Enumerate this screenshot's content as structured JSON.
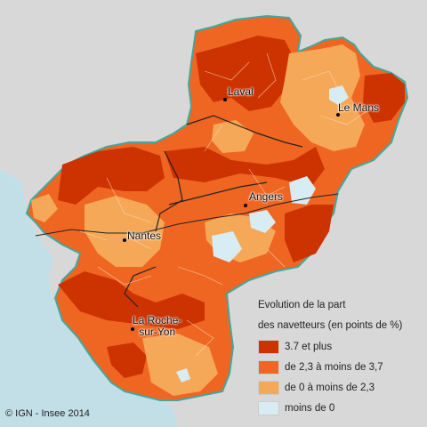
{
  "cities": [
    {
      "name": "Laval"
    },
    {
      "name": "Le Mans"
    },
    {
      "name": "Angers"
    },
    {
      "name": "Nantes"
    },
    {
      "name": "La Roche-\nsur-Yon"
    }
  ],
  "legend": {
    "title_line1": "Evolution de la part",
    "title_line2": "des navetteurs (en points de %)",
    "items": [
      {
        "label": "3.7 et plus",
        "color": "#cc3300"
      },
      {
        "label": "de 2,3 à moins de 3,7",
        "color": "#ee6622"
      },
      {
        "label": "de 0 à moins de 2,3",
        "color": "#f5a857"
      },
      {
        "label": "moins de 0",
        "color": "#d8ecf4"
      }
    ]
  },
  "credit": "© IGN - Insee 2014",
  "colors": {
    "sea": "#c2dfe8",
    "land_outside": "#d8d8d8",
    "border": "#40a8a0"
  }
}
